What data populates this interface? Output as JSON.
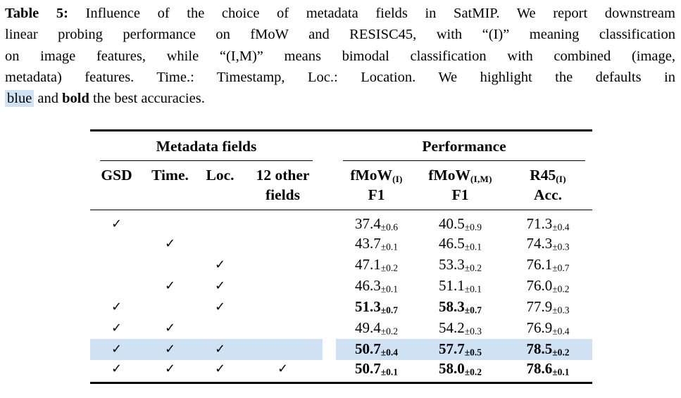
{
  "colors": {
    "highlight": "#cfe2f3",
    "text": "#000000",
    "background": "#ffffff"
  },
  "caption": {
    "lines": [
      [
        {
          "t": "Table 5:",
          "b": true
        },
        {
          "t": " Influence of the choice of metadata fields in SatMIP. We report downstream"
        }
      ],
      [
        {
          "t": "linear probing performance on fMoW and RESISC45, with “(I)” meaning classification"
        }
      ],
      [
        {
          "t": "on image features, while “(I,M)” means bimodal classification with combined (image,"
        }
      ],
      [
        {
          "t": "metadata) features. Time.: Timestamp, Loc.: Location. We highlight the defaults in"
        }
      ],
      [
        {
          "t": "blue",
          "hl": true
        },
        {
          "t": " and "
        },
        {
          "t": "bold",
          "b": true
        },
        {
          "t": " the best accuracies."
        }
      ]
    ]
  },
  "table": {
    "group_headers": {
      "metadata": "Metadata fields",
      "performance": "Performance"
    },
    "checkmark": "✓",
    "meta_columns": [
      {
        "key": "gsd",
        "label": "GSD"
      },
      {
        "key": "time",
        "label": "Time."
      },
      {
        "key": "loc",
        "label": "Loc."
      },
      {
        "key": "other",
        "label": "12 other fields"
      }
    ],
    "perf_columns": [
      {
        "key": "fmow-i",
        "main": "fMoW",
        "sub": "(I)",
        "line2": "F1"
      },
      {
        "key": "fmow-im",
        "main": "fMoW",
        "sub": "(I,M)",
        "line2": "F1"
      },
      {
        "key": "r45-i",
        "main": "R45",
        "sub": "(I)",
        "line2": "Acc."
      }
    ],
    "rows": [
      {
        "checks": [
          true,
          false,
          false,
          false
        ],
        "highlight": false,
        "values": [
          {
            "v": "37.4",
            "pm": "±0.6",
            "bold": false
          },
          {
            "v": "40.5",
            "pm": "±0.9",
            "bold": false
          },
          {
            "v": "71.3",
            "pm": "±0.4",
            "bold": false
          }
        ]
      },
      {
        "checks": [
          false,
          true,
          false,
          false
        ],
        "highlight": false,
        "values": [
          {
            "v": "43.7",
            "pm": "±0.1",
            "bold": false
          },
          {
            "v": "46.5",
            "pm": "±0.1",
            "bold": false
          },
          {
            "v": "74.3",
            "pm": "±0.3",
            "bold": false
          }
        ]
      },
      {
        "checks": [
          false,
          false,
          true,
          false
        ],
        "highlight": false,
        "values": [
          {
            "v": "47.1",
            "pm": "±0.2",
            "bold": false
          },
          {
            "v": "53.3",
            "pm": "±0.2",
            "bold": false
          },
          {
            "v": "76.1",
            "pm": "±0.7",
            "bold": false
          }
        ]
      },
      {
        "checks": [
          false,
          true,
          true,
          false
        ],
        "highlight": false,
        "values": [
          {
            "v": "46.3",
            "pm": "±0.1",
            "bold": false
          },
          {
            "v": "51.1",
            "pm": "±0.1",
            "bold": false
          },
          {
            "v": "76.0",
            "pm": "±0.2",
            "bold": false
          }
        ]
      },
      {
        "checks": [
          true,
          false,
          true,
          false
        ],
        "highlight": false,
        "values": [
          {
            "v": "51.3",
            "pm": "±0.7",
            "bold": true
          },
          {
            "v": "58.3",
            "pm": "±0.7",
            "bold": true
          },
          {
            "v": "77.9",
            "pm": "±0.3",
            "bold": false
          }
        ]
      },
      {
        "checks": [
          true,
          true,
          false,
          false
        ],
        "highlight": false,
        "values": [
          {
            "v": "49.4",
            "pm": "±0.2",
            "bold": false
          },
          {
            "v": "54.2",
            "pm": "±0.3",
            "bold": false
          },
          {
            "v": "76.9",
            "pm": "±0.4",
            "bold": false
          }
        ]
      },
      {
        "checks": [
          true,
          true,
          true,
          false
        ],
        "highlight": true,
        "values": [
          {
            "v": "50.7",
            "pm": "±0.4",
            "bold": true
          },
          {
            "v": "57.7",
            "pm": "±0.5",
            "bold": true
          },
          {
            "v": "78.5",
            "pm": "±0.2",
            "bold": true
          }
        ]
      },
      {
        "checks": [
          true,
          true,
          true,
          true
        ],
        "highlight": false,
        "values": [
          {
            "v": "50.7",
            "pm": "±0.1",
            "bold": true
          },
          {
            "v": "58.0",
            "pm": "±0.2",
            "bold": true
          },
          {
            "v": "78.6",
            "pm": "±0.1",
            "bold": true
          }
        ]
      }
    ]
  }
}
